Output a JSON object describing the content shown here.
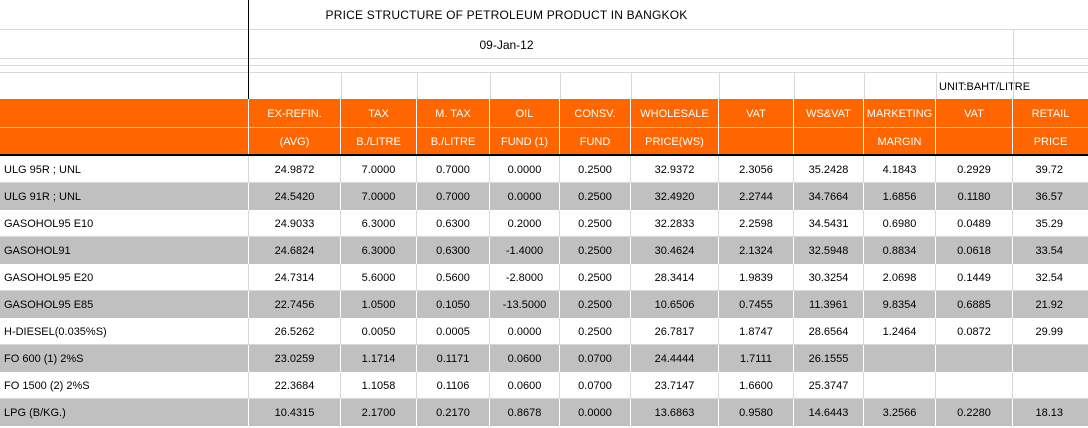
{
  "sheet": {
    "title": "PRICE STRUCTURE OF PETROLEUM PRODUCT IN BANGKOK",
    "date": "09-Jan-12",
    "unit": "UNIT:BAHT/LITRE"
  },
  "columns": [
    {
      "key": "ex_refin",
      "line1": "EX-REFIN.",
      "line2": "(AVG)"
    },
    {
      "key": "tax",
      "line1": "TAX",
      "line2": "B./LITRE"
    },
    {
      "key": "m_tax",
      "line1": "M. TAX",
      "line2": "B./LITRE"
    },
    {
      "key": "oil_fund",
      "line1": "OIL",
      "line2": "FUND (1)"
    },
    {
      "key": "consv_fund",
      "line1": "CONSV.",
      "line2": "FUND"
    },
    {
      "key": "wholesale",
      "line1": "WHOLESALE",
      "line2": "PRICE(WS)"
    },
    {
      "key": "vat_ws",
      "line1": "VAT",
      "line2": ""
    },
    {
      "key": "ws_vat",
      "line1": "WS&VAT",
      "line2": ""
    },
    {
      "key": "marketing",
      "line1": "MARKETING",
      "line2": "MARGIN"
    },
    {
      "key": "vat_mkt",
      "line1": "VAT",
      "line2": ""
    },
    {
      "key": "retail",
      "line1": "RETAIL",
      "line2": "PRICE"
    }
  ],
  "rows": [
    {
      "name": "ULG 95R ; UNL",
      "values": [
        "24.9872",
        "7.0000",
        "0.7000",
        "0.0000",
        "0.2500",
        "32.9372",
        "2.3056",
        "35.2428",
        "4.1843",
        "0.2929",
        "39.72"
      ]
    },
    {
      "name": "ULG 91R ; UNL",
      "values": [
        "24.5420",
        "7.0000",
        "0.7000",
        "0.0000",
        "0.2500",
        "32.4920",
        "2.2744",
        "34.7664",
        "1.6856",
        "0.1180",
        "36.57"
      ]
    },
    {
      "name": "GASOHOL95 E10",
      "values": [
        "24.9033",
        "6.3000",
        "0.6300",
        "0.2000",
        "0.2500",
        "32.2833",
        "2.2598",
        "34.5431",
        "0.6980",
        "0.0489",
        "35.29"
      ]
    },
    {
      "name": "GASOHOL91",
      "values": [
        "24.6824",
        "6.3000",
        "0.6300",
        "-1.4000",
        "0.2500",
        "30.4624",
        "2.1324",
        "32.5948",
        "0.8834",
        "0.0618",
        "33.54"
      ]
    },
    {
      "name": "GASOHOL95 E20",
      "values": [
        "24.7314",
        "5.6000",
        "0.5600",
        "-2.8000",
        "0.2500",
        "28.3414",
        "1.9839",
        "30.3254",
        "2.0698",
        "0.1449",
        "32.54"
      ]
    },
    {
      "name": "GASOHOL95 E85",
      "values": [
        "22.7456",
        "1.0500",
        "0.1050",
        "-13.5000",
        "0.2500",
        "10.6506",
        "0.7455",
        "11.3961",
        "9.8354",
        "0.6885",
        "21.92"
      ]
    },
    {
      "name": "H-DIESEL(0.035%S)",
      "values": [
        "26.5262",
        "0.0050",
        "0.0005",
        "0.0000",
        "0.2500",
        "26.7817",
        "1.8747",
        "28.6564",
        "1.2464",
        "0.0872",
        "29.99"
      ]
    },
    {
      "name": "FO 600 (1) 2%S",
      "values": [
        "23.0259",
        "1.1714",
        "0.1171",
        "0.0600",
        "0.0700",
        "24.4444",
        "1.7111",
        "26.1555",
        "",
        "",
        ""
      ]
    },
    {
      "name": "FO 1500 (2) 2%S",
      "values": [
        "22.3684",
        "1.1058",
        "0.1106",
        "0.0600",
        "0.0700",
        "23.7147",
        "1.6600",
        "25.3747",
        "",
        "",
        ""
      ]
    },
    {
      "name": "LPG (B/KG.)",
      "values": [
        "10.4315",
        "2.1700",
        "0.2170",
        "0.8678",
        "0.0000",
        "13.6863",
        "0.9580",
        "14.6443",
        "3.2566",
        "0.2280",
        "18.13"
      ]
    }
  ]
}
